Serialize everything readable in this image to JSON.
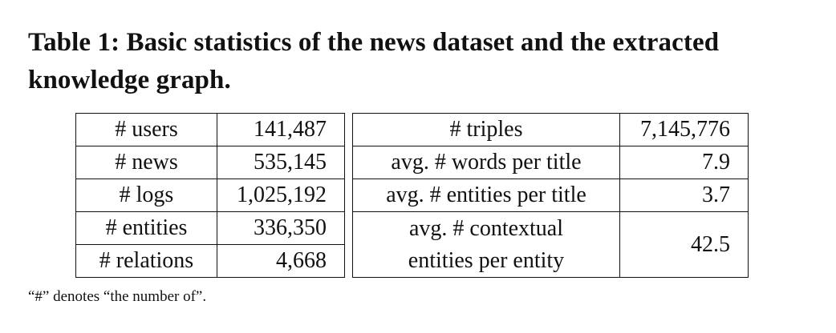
{
  "caption": "Table 1: Basic statistics of the news dataset and the extracted knowledge graph.",
  "table": {
    "rows": [
      {
        "l_label": "# users",
        "l_value": "141,487",
        "r_label": "# triples",
        "r_value": "7,145,776"
      },
      {
        "l_label": "# news",
        "l_value": "535,145",
        "r_label": "avg. # words per title",
        "r_value": "7.9"
      },
      {
        "l_label": "# logs",
        "l_value": "1,025,192",
        "r_label": "avg. # entities per title",
        "r_value": "3.7"
      },
      {
        "l_label": "# entities",
        "l_value": "336,350"
      },
      {
        "l_label": "# relations",
        "l_value": "4,668"
      }
    ],
    "merged": {
      "r_label_line1": "avg. # contextual",
      "r_label_line2": "entities per entity",
      "r_value": "42.5"
    }
  },
  "footnote": "“#” denotes “the number of”."
}
